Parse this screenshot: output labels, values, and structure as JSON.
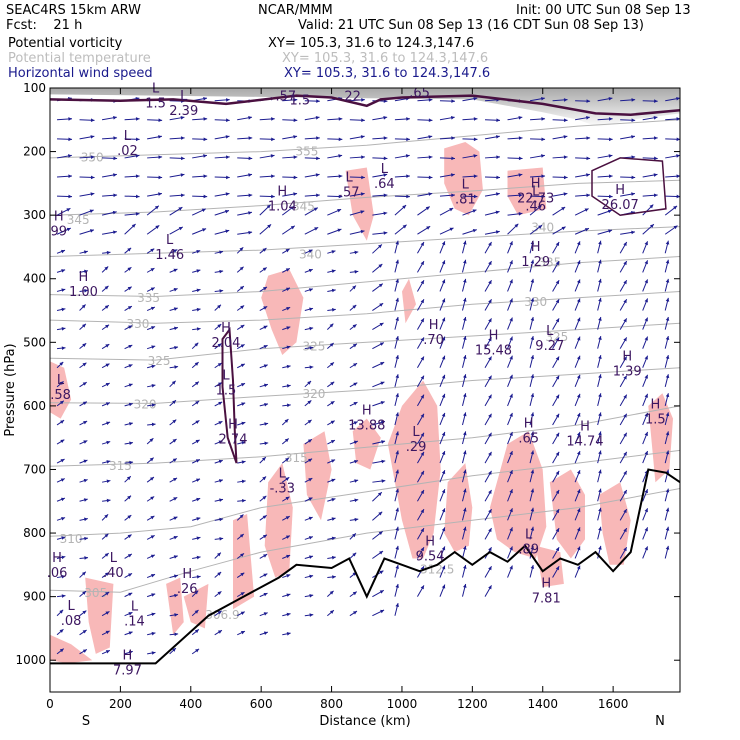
{
  "header": {
    "model": "SEAC4RS 15km ARW",
    "forecast": "Fcst:    21 h",
    "org": "NCAR/MMM",
    "init": "Init: 00 UTC Sun 08 Sep 13",
    "valid": "Valid: 21 UTC Sun 08 Sep 13 (16 CDT Sun 08 Sep 13)",
    "fields": [
      {
        "label": "Potential vorticity",
        "xy": "XY= 105.3, 31.6 to 124.3,147.6",
        "color": "#000000"
      },
      {
        "label": "Potential temperature",
        "xy": "XY= 105.3, 31.6 to 124.3,147.6",
        "color": "#bdbdbd"
      },
      {
        "label": "Horizontal wind speed",
        "xy": "XY= 105.3, 31.6 to 124.3,147.6",
        "color": "#1a1a8c"
      }
    ]
  },
  "colors": {
    "pv_contour": "#4a1040",
    "theta_contour": "#b4b4b4",
    "wind_arrow": "#1c1c90",
    "shading": "#f8b8b8",
    "marker": "#3c1660"
  },
  "chart_data": {
    "type": "cross-section",
    "xlabel": "Distance (km)",
    "ylabel": "Pressure (hPa)",
    "xlim": [
      0,
      1790
    ],
    "ylim": [
      1050,
      100
    ],
    "x_ticks": [
      "0",
      "200",
      "400",
      "600",
      "800",
      "1000",
      "1200",
      "1400",
      "1600"
    ],
    "y_ticks": [
      "100",
      "200",
      "300",
      "400",
      "500",
      "600",
      "700",
      "800",
      "900",
      "1000"
    ],
    "x_end_labels": {
      "left": "S",
      "right": "N"
    },
    "theta_labels": [
      {
        "text": "355",
        "x": 730,
        "p": 198
      },
      {
        "text": "350",
        "x": 120,
        "p": 208
      },
      {
        "text": "345",
        "x": 720,
        "p": 285
      },
      {
        "text": "345",
        "x": 80,
        "p": 306
      },
      {
        "text": "340",
        "x": 740,
        "p": 360
      },
      {
        "text": "340",
        "x": 1400,
        "p": 318
      },
      {
        "text": "335",
        "x": 280,
        "p": 429
      },
      {
        "text": "335",
        "x": 1420,
        "p": 373
      },
      {
        "text": "330",
        "x": 250,
        "p": 470
      },
      {
        "text": "330",
        "x": 1380,
        "p": 435
      },
      {
        "text": "325",
        "x": 310,
        "p": 528
      },
      {
        "text": "325",
        "x": 750,
        "p": 505
      },
      {
        "text": "325",
        "x": 1440,
        "p": 490
      },
      {
        "text": "320",
        "x": 270,
        "p": 596
      },
      {
        "text": "320",
        "x": 750,
        "p": 580
      },
      {
        "text": "315",
        "x": 200,
        "p": 693
      },
      {
        "text": "315",
        "x": 700,
        "p": 680
      },
      {
        "text": "310",
        "x": 60,
        "p": 808
      },
      {
        "text": "305",
        "x": 130,
        "p": 893
      },
      {
        "text": "312.5",
        "x": 1100,
        "p": 856
      },
      {
        "text": "306.9",
        "x": 490,
        "p": 927
      }
    ],
    "extrema": [
      {
        "type": "L",
        "value": "2.39",
        "x": 380,
        "p": 125
      },
      {
        "type": "L",
        "value": ".02",
        "x": 220,
        "p": 188
      },
      {
        "type": "H",
        "value": "1.04",
        "x": 660,
        "p": 275
      },
      {
        "type": "L",
        "value": ".57",
        "x": 850,
        "p": 253
      },
      {
        "type": "L",
        "value": ".64",
        "x": 950,
        "p": 240
      },
      {
        "type": "H",
        "value": "99",
        "x": 25,
        "p": 315
      },
      {
        "type": "L",
        "value": "1.46",
        "x": 340,
        "p": 352
      },
      {
        "type": "H",
        "value": "1.00",
        "x": 95,
        "p": 410
      },
      {
        "type": "H",
        "value": "2.04",
        "x": 500,
        "p": 490
      },
      {
        "type": "H",
        "value": ".70",
        "x": 1090,
        "p": 485
      },
      {
        "type": "H",
        "value": "15.48",
        "x": 1260,
        "p": 502
      },
      {
        "type": "L",
        "value": "9.27",
        "x": 1420,
        "p": 495
      },
      {
        "type": "H",
        "value": "1.39",
        "x": 1640,
        "p": 535
      },
      {
        "type": "L",
        "value": ".58",
        "x": 30,
        "p": 572
      },
      {
        "type": "H",
        "value": "2.74",
        "x": 520,
        "p": 642
      },
      {
        "type": "H",
        "value": "13.88",
        "x": 900,
        "p": 620
      },
      {
        "type": "L",
        "value": ".29",
        "x": 1040,
        "p": 654
      },
      {
        "type": "H",
        "value": ".65",
        "x": 1360,
        "p": 640
      },
      {
        "type": "H",
        "value": "14.74",
        "x": 1520,
        "p": 645
      },
      {
        "type": "H",
        "value": "1.5",
        "x": 1720,
        "p": 610
      },
      {
        "type": "L",
        "value": "-.33",
        "x": 660,
        "p": 719
      },
      {
        "type": "H",
        "value": "9.54",
        "x": 1080,
        "p": 826
      },
      {
        "type": "L",
        "value": ".89",
        "x": 1360,
        "p": 815
      },
      {
        "type": "H",
        "value": ".06",
        "x": 20,
        "p": 852
      },
      {
        "type": "L",
        "value": ".40",
        "x": 180,
        "p": 852
      },
      {
        "type": "H",
        "value": ".26",
        "x": 390,
        "p": 877
      },
      {
        "type": "L",
        "value": ".08",
        "x": 60,
        "p": 927
      },
      {
        "type": "L",
        "value": ".14",
        "x": 240,
        "p": 928
      },
      {
        "type": "H",
        "value": "7.81",
        "x": 1410,
        "p": 892
      },
      {
        "type": "H",
        "value": "7.97",
        "x": 220,
        "p": 1005
      },
      {
        "type": "H",
        "value": "22.73",
        "x": 1380,
        "p": 263
      },
      {
        "type": "H",
        "value": "26.07",
        "x": 1620,
        "p": 273
      },
      {
        "type": "L",
        "value": ".81",
        "x": 1180,
        "p": 264
      },
      {
        "type": "L",
        "value": ".46",
        "x": 1380,
        "p": 275
      },
      {
        "type": "H",
        "value": "1.29",
        "x": 1380,
        "p": 363
      },
      {
        "type": "L",
        "value": "1.5",
        "x": 300,
        "p": 113
      },
      {
        "type": "L",
        "value": "1.5",
        "x": 500,
        "p": 565
      }
    ],
    "pv_labels": [
      {
        "text": "1.5",
        "x": 710,
        "p": 118
      },
      {
        "text": "22",
        "x": 860,
        "p": 112
      },
      {
        "text": ".57",
        "x": 670,
        "p": 112
      },
      {
        "text": ".65",
        "x": 1050,
        "p": 106
      }
    ]
  }
}
